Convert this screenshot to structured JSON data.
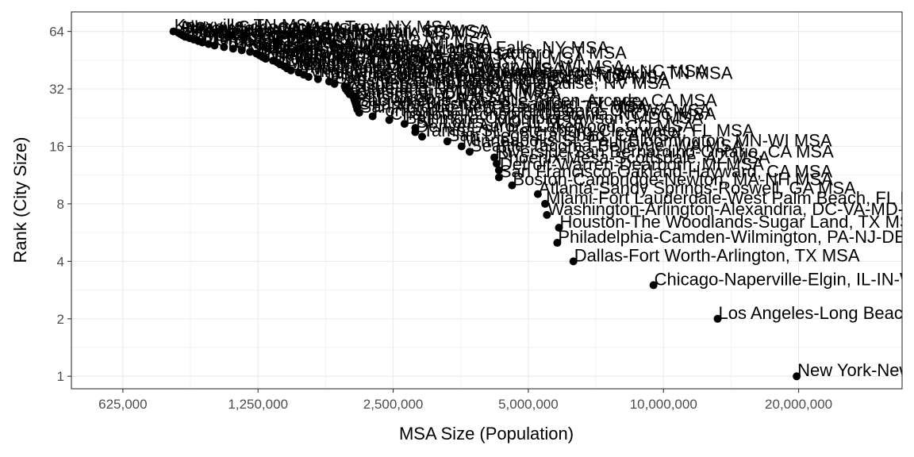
{
  "chart_data": {
    "type": "scatter",
    "title": "",
    "xlabel": "MSA Size (Population)",
    "ylabel": "Rank (City Size)",
    "x_scale": "log2",
    "y_scale": "log2",
    "xlim": [
      480000,
      34000000
    ],
    "ylim": [
      0.86,
      81
    ],
    "grid": true,
    "x_ticks": [
      625000,
      1250000,
      2500000,
      5000000,
      10000000,
      20000000
    ],
    "x_tick_labels": [
      "625,000",
      "1,250,000",
      "2,500,000",
      "5,000,000",
      "10,000,000",
      "20,000,000"
    ],
    "y_ticks": [
      1,
      2,
      4,
      8,
      16,
      32,
      64
    ],
    "y_tick_labels": [
      "1",
      "2",
      "4",
      "8",
      "16",
      "32",
      "64"
    ],
    "points": [
      {
        "x": 19800000,
        "y": 1,
        "label": "New York-Newark-Jersey City, NY-NJ-PA MSA"
      },
      {
        "x": 13200000,
        "y": 2,
        "label": "Los Angeles-Long Beach-Anaheim, CA MSA"
      },
      {
        "x": 9500000,
        "y": 3,
        "label": "Chicago-Naperville-Elgin, IL-IN-WI MSA"
      },
      {
        "x": 6300000,
        "y": 4,
        "label": "Dallas-Fort Worth-Arlington, TX MSA"
      },
      {
        "x": 5800000,
        "y": 5,
        "label": "Philadelphia-Camden-Wilmington, PA-NJ-DE-MD MSA"
      },
      {
        "x": 5850000,
        "y": 6,
        "label": "Houston-The Woodlands-Sugar Land, TX MSA"
      },
      {
        "x": 5500000,
        "y": 7,
        "label": "Washington-Arlington-Alexandria, DC-VA-MD-WV MSA"
      },
      {
        "x": 5450000,
        "y": 8,
        "label": "Miami-Fort Lauderdale-West Palm Beach, FL MSA"
      },
      {
        "x": 5250000,
        "y": 9,
        "label": "Atlanta-Sandy Springs-Roswell, GA MSA"
      },
      {
        "x": 4600000,
        "y": 10,
        "label": "Boston-Cambridge-Newton, MA-NH MSA"
      },
      {
        "x": 4300000,
        "y": 11,
        "label": "San Francisco-Oakland-Hayward, CA MSA"
      },
      {
        "x": 4300000,
        "y": 12,
        "label": "Detroit-Warren-Dearborn, MI MSA"
      },
      {
        "x": 4250000,
        "y": 13,
        "label": "Phoenix-Mesa-Scottsdale, AZ MSA"
      },
      {
        "x": 4200000,
        "y": 14,
        "label": "Riverside-San Bernardino-Ontario, CA MSA"
      },
      {
        "x": 3700000,
        "y": 15,
        "label": "Seattle-Tacoma-Bellevue, WA MSA"
      },
      {
        "x": 3550000,
        "y": 16,
        "label": "Minneapolis-St. Paul-Bloomington, MN-WI MSA"
      },
      {
        "x": 3300000,
        "y": 17,
        "label": "San Diego-Carlsbad, CA MSA"
      },
      {
        "x": 2900000,
        "y": 18,
        "label": "Tampa-St. Petersburg-Clearwater, FL MSA"
      },
      {
        "x": 2800000,
        "y": 19,
        "label": "Denver-Aurora-Lakewood, CO MSA"
      },
      {
        "x": 2800000,
        "y": 20,
        "label": "St. Louis, MO-IL MSA"
      },
      {
        "x": 2650000,
        "y": 21,
        "label": "Baltimore-Columbia-Towson, MD MSA"
      },
      {
        "x": 2450000,
        "y": 22,
        "label": "Charlotte-Concord-Gastonia, NC-SC MSA"
      },
      {
        "x": 2250000,
        "y": 23,
        "label": "Portland-Vancouver-Hillsboro, OR-WA MSA"
      },
      {
        "x": 2100000,
        "y": 24,
        "label": "San Antonio-New Braunfels, TX MSA"
      },
      {
        "x": 2080000,
        "y": 25,
        "label": "Orlando-Kissimmee-Sanford, FL MSA"
      },
      {
        "x": 2070000,
        "y": 26,
        "label": "Sacramento-Roseville-Arden-Arcade, CA MSA"
      },
      {
        "x": 2060000,
        "y": 27,
        "label": "Pittsburgh, PA MSA"
      },
      {
        "x": 2050000,
        "y": 28,
        "label": "Cincinnati, OH-KY-IN MSA"
      },
      {
        "x": 2040000,
        "y": 29,
        "label": "Kansas City, MO-KS MSA"
      },
      {
        "x": 2000000,
        "y": 30,
        "label": "Cleveland-Elyria, OH MSA"
      },
      {
        "x": 1980000,
        "y": 31,
        "label": "Columbus, OH MSA"
      },
      {
        "x": 1960000,
        "y": 32,
        "label": "Las Vegas-Henderson-Paradise, NV MSA"
      },
      {
        "x": 1950000,
        "y": 33,
        "label": "Austin-Round Rock, TX MSA"
      },
      {
        "x": 1850000,
        "y": 34,
        "label": "San Jose-Sunnyvale-Santa Clara, CA MSA"
      },
      {
        "x": 1800000,
        "y": 35,
        "label": "Indianapolis-Carmel-Anderson, IN MSA"
      },
      {
        "x": 1700000,
        "y": 36,
        "label": "Nashville-Davidson--Murfreesboro--Franklin, TN MSA"
      },
      {
        "x": 1620000,
        "y": 37,
        "label": "Virginia Beach-Norfolk-Newport News, VA-NC MSA"
      },
      {
        "x": 1580000,
        "y": 38,
        "label": "Providence-Warwick, RI-MA MSA"
      },
      {
        "x": 1540000,
        "y": 39,
        "label": "Milwaukee-Waukesha-West Allis, WI MSA"
      },
      {
        "x": 1480000,
        "y": 40,
        "label": "Jacksonville, FL MSA"
      },
      {
        "x": 1450000,
        "y": 41,
        "label": "Memphis, TN-MS-AR MSA"
      },
      {
        "x": 1430000,
        "y": 42,
        "label": "Oklahoma City, OK MSA"
      },
      {
        "x": 1400000,
        "y": 43,
        "label": "Louisville/Jefferson County, KY-IN MSA"
      },
      {
        "x": 1380000,
        "y": 44,
        "label": "Richmond, VA MSA"
      },
      {
        "x": 1350000,
        "y": 45,
        "label": "New Orleans-Metairie, LA MSA"
      },
      {
        "x": 1300000,
        "y": 46,
        "label": "Hartford-West Hartford-East Hartford, CT MSA"
      },
      {
        "x": 1280000,
        "y": 47,
        "label": "Raleigh, NC MSA"
      },
      {
        "x": 1260000,
        "y": 48,
        "label": "Birmingham-Hoover, AL MSA"
      },
      {
        "x": 1240000,
        "y": 49,
        "label": "Buffalo-Cheektowaga-Niagara Falls, NY MSA"
      },
      {
        "x": 1200000,
        "y": 50,
        "label": "Salt Lake City, UT MSA"
      },
      {
        "x": 1150000,
        "y": 51,
        "label": "Rochester, NY MSA"
      },
      {
        "x": 1100000,
        "y": 52,
        "label": "Grand Rapids-Wyoming, MI MSA"
      },
      {
        "x": 1050000,
        "y": 53,
        "label": "Tucson, AZ MSA"
      },
      {
        "x": 1000000,
        "y": 54,
        "label": "Urban Honolulu, HI MSA"
      },
      {
        "x": 970000,
        "y": 55,
        "label": "Tulsa, OK MSA"
      },
      {
        "x": 940000,
        "y": 56,
        "label": "Fresno, CA MSA"
      },
      {
        "x": 920000,
        "y": 57,
        "label": "Worcester, MA-CT MSA"
      },
      {
        "x": 900000,
        "y": 58,
        "label": "Omaha-Council Bluffs, NE-IA MSA"
      },
      {
        "x": 880000,
        "y": 59,
        "label": "Bridgeport-Stamford-Norwalk, CT MSA"
      },
      {
        "x": 860000,
        "y": 60,
        "label": "Greenville-Anderson-Mauldin, SC MSA"
      },
      {
        "x": 850000,
        "y": 61,
        "label": "Albuquerque, NM MSA"
      },
      {
        "x": 840000,
        "y": 62,
        "label": "Bakersfield, CA MSA"
      },
      {
        "x": 830000,
        "y": 63,
        "label": "Albany-Schenectady-Troy, NY MSA"
      },
      {
        "x": 810000,
        "y": 64,
        "label": "Knoxville, TN MSA"
      }
    ]
  }
}
